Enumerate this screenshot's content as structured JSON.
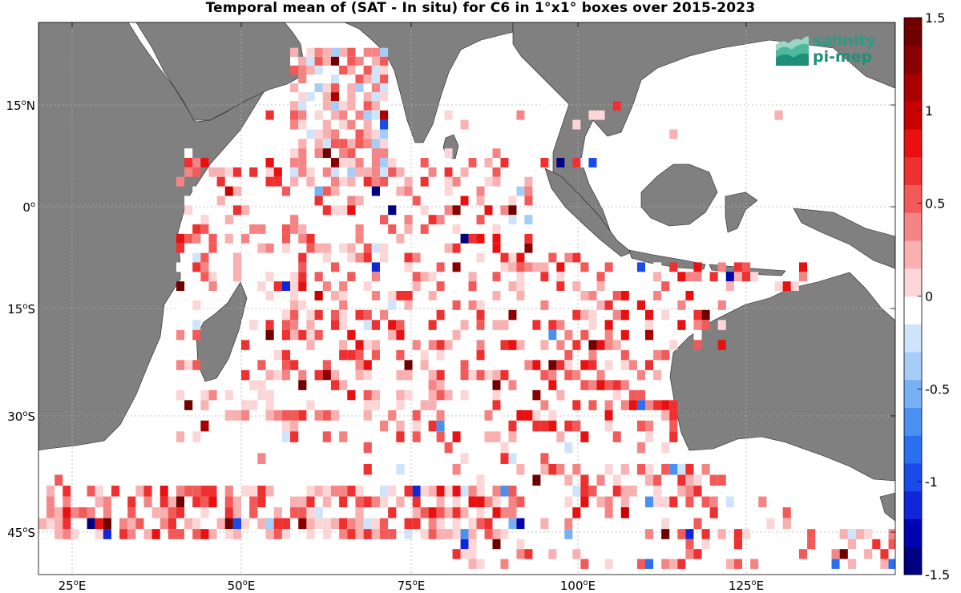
{
  "title": "Temporal mean of (SAT - In situ) for C6 in 1°x1° boxes over 2015-2023",
  "map": {
    "lon_range": [
      20,
      147
    ],
    "lat_range": [
      -51,
      28
    ],
    "lat_ticks": [
      {
        "value": 15,
        "num": "15",
        "hemi": "N"
      },
      {
        "value": 0,
        "num": "0",
        "hemi": ""
      },
      {
        "value": -15,
        "num": "15",
        "hemi": "S"
      },
      {
        "value": -30,
        "num": "30",
        "hemi": "S"
      },
      {
        "value": -45,
        "num": "45",
        "hemi": "S"
      }
    ],
    "lon_ticks": [
      {
        "value": 25,
        "num": "25",
        "hemi": "E"
      },
      {
        "value": 50,
        "num": "50",
        "hemi": "E"
      },
      {
        "value": 75,
        "num": "75",
        "hemi": "E"
      },
      {
        "value": 100,
        "num": "100",
        "hemi": "E"
      },
      {
        "value": 125,
        "num": "125",
        "hemi": "E"
      }
    ],
    "grid": true,
    "land_color": "#808080",
    "ocean_color": "#ffffff"
  },
  "colorbar": {
    "range": [
      -1.5,
      1.5
    ],
    "step": 0.125,
    "labels": [
      "1.5",
      "1",
      "0.5",
      "0",
      "-0.5",
      "-1",
      "-1.5"
    ],
    "label_values": [
      1.5,
      1,
      0.5,
      0,
      -0.5,
      -1,
      -1.5
    ],
    "colors": [
      "#000080",
      "#0005b0",
      "#0f27d8",
      "#1a4be8",
      "#2a6ff0",
      "#4a90f0",
      "#78b0f4",
      "#a6cdf7",
      "#cfe3fb",
      "#ffffff",
      "#fcd6d6",
      "#f8b0b0",
      "#f58585",
      "#f25a5a",
      "#ef3030",
      "#e81010",
      "#c80000",
      "#a80000",
      "#880000",
      "#6e0000"
    ]
  },
  "logo": {
    "line1": "salinity",
    "line2": "pi-mep",
    "icon": "salinity-waves-icon"
  }
}
